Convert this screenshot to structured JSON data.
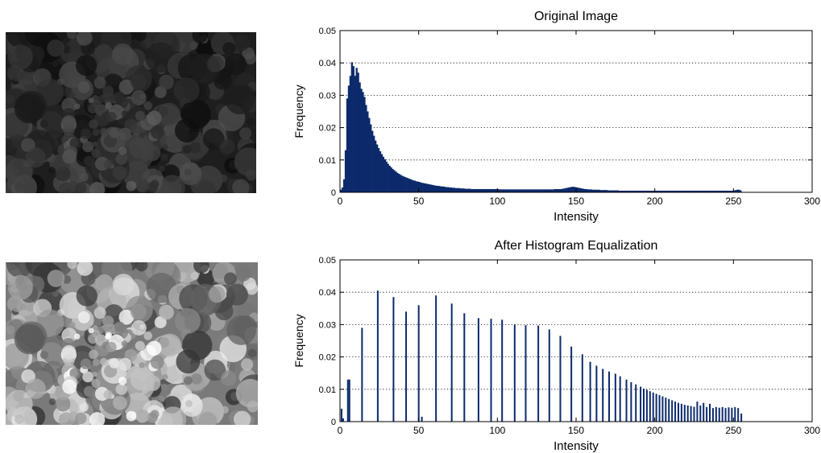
{
  "colors": {
    "bar": "#0c2a6b",
    "grid": "#000000",
    "axis": "#000000"
  },
  "photos": [
    {
      "name": "original-crowd-photo",
      "tone": "dark"
    },
    {
      "name": "equalized-crowd-photo",
      "tone": "bright"
    }
  ],
  "chart_data": [
    {
      "type": "bar",
      "title": "Original Image",
      "xlabel": "Intensity",
      "ylabel": "Frequency",
      "xlim": [
        0,
        300
      ],
      "ylim": [
        0,
        0.05
      ],
      "xticks": [
        0,
        50,
        100,
        150,
        200,
        250,
        300
      ],
      "yticks": [
        0,
        0.01,
        0.02,
        0.03,
        0.04,
        0.05
      ],
      "xtick_labels": [
        "0",
        "50",
        "100",
        "150",
        "200",
        "250",
        "300"
      ],
      "ytick_labels": [
        "0",
        "0.01",
        "0.02",
        "0.03",
        "0.04",
        "0.05"
      ],
      "grid": "horizontal-dotted",
      "series": [
        {
          "x_start": 0,
          "values": [
            0.0008,
            0.0015,
            0.004,
            0.013,
            0.029,
            0.033,
            0.036,
            0.0402,
            0.039,
            0.036,
            0.0385,
            0.037,
            0.034,
            0.032,
            0.031,
            0.0295,
            0.027,
            0.025,
            0.023,
            0.021,
            0.019,
            0.0175,
            0.016,
            0.0148,
            0.0137,
            0.0127,
            0.0118,
            0.011,
            0.0102,
            0.0095,
            0.0088,
            0.0082,
            0.0077,
            0.0072,
            0.0068,
            0.0064,
            0.006,
            0.0057,
            0.0054,
            0.0051,
            0.0049,
            0.0047,
            0.0045,
            0.0043,
            0.0041,
            0.0039,
            0.0037,
            0.0036,
            0.0034,
            0.0033,
            0.0032,
            0.003,
            0.0029,
            0.0028,
            0.0027,
            0.0026,
            0.0025,
            0.0024,
            0.0023,
            0.0022,
            0.0021,
            0.002,
            0.002,
            0.0019,
            0.0018,
            0.0018,
            0.0017,
            0.0016,
            0.0016,
            0.0015,
            0.0015,
            0.0014,
            0.0014,
            0.0013,
            0.0013,
            0.0013,
            0.0012,
            0.0012,
            0.0012,
            0.0011,
            0.0011,
            0.0011,
            0.0011,
            0.001,
            0.001,
            0.001,
            0.001,
            0.001,
            0.001,
            0.001,
            0.001,
            0.001,
            0.001,
            0.001,
            0.001,
            0.001,
            0.001,
            0.001,
            0.001,
            0.001,
            0.001,
            0.0009,
            0.0009,
            0.0009,
            0.0009,
            0.0009,
            0.0009,
            0.0009,
            0.0009,
            0.0009,
            0.0009,
            0.0009,
            0.0009,
            0.0009,
            0.0009,
            0.0009,
            0.0009,
            0.0009,
            0.0009,
            0.0009,
            0.0009,
            0.0009,
            0.0009,
            0.0009,
            0.0009,
            0.0009,
            0.0009,
            0.0009,
            0.0009,
            0.0009,
            0.0009,
            0.0009,
            0.0009,
            0.0009,
            0.0009,
            0.0009,
            0.001,
            0.001,
            0.001,
            0.001,
            0.001,
            0.0011,
            0.0012,
            0.0013,
            0.0014,
            0.0015,
            0.0016,
            0.0017,
            0.0017,
            0.0016,
            0.0015,
            0.0014,
            0.0013,
            0.0012,
            0.0011,
            0.001,
            0.001,
            0.0009,
            0.0009,
            0.0009,
            0.0008,
            0.0008,
            0.0008,
            0.0008,
            0.0008,
            0.0007,
            0.0007,
            0.0007,
            0.0007,
            0.0007,
            0.0006,
            0.0006,
            0.0006,
            0.0006,
            0.0006,
            0.0006,
            0.0006,
            0.0005,
            0.0005,
            0.0005,
            0.0005,
            0.0005,
            0.0005,
            0.0005,
            0.0005,
            0.0005,
            0.0005,
            0.0005,
            0.0005,
            0.0005,
            0.0005,
            0.0005,
            0.0005,
            0.0005,
            0.0005,
            0.0005,
            0.0005,
            0.0005,
            0.0005,
            0.0005,
            0.0005,
            0.0005,
            0.0005,
            0.0005,
            0.0005,
            0.0005,
            0.0005,
            0.0005,
            0.0005,
            0.0005,
            0.0005,
            0.0005,
            0.0005,
            0.0005,
            0.0005,
            0.0005,
            0.0005,
            0.0005,
            0.0005,
            0.0005,
            0.0005,
            0.0005,
            0.0005,
            0.0005,
            0.0005,
            0.0005,
            0.0005,
            0.0005,
            0.0005,
            0.0005,
            0.0005,
            0.0005,
            0.0005,
            0.0005,
            0.0005,
            0.0005,
            0.0005,
            0.0005,
            0.0005,
            0.0005,
            0.0005,
            0.0005,
            0.0005,
            0.0005,
            0.0005,
            0.0005,
            0.0005,
            0.0005,
            0.0005,
            0.0005,
            0.0006,
            0.0007,
            0.0008,
            0.0008,
            0.0006
          ]
        }
      ]
    },
    {
      "type": "bar",
      "title": "After Histogram Equalization",
      "xlabel": "Intensity",
      "ylabel": "Frequency",
      "xlim": [
        0,
        300
      ],
      "ylim": [
        0,
        0.05
      ],
      "xticks": [
        0,
        50,
        100,
        150,
        200,
        250,
        300
      ],
      "yticks": [
        0,
        0.01,
        0.02,
        0.03,
        0.04,
        0.05
      ],
      "xtick_labels": [
        "0",
        "50",
        "100",
        "150",
        "200",
        "250",
        "300"
      ],
      "ytick_labels": [
        "0",
        "0.01",
        "0.02",
        "0.03",
        "0.04",
        "0.05"
      ],
      "grid": "horizontal-dotted",
      "series": [
        {
          "x": [
            1,
            2,
            5,
            6,
            14,
            24,
            34,
            42,
            50,
            52,
            61,
            71,
            79,
            88,
            96,
            103,
            111,
            118,
            126,
            133,
            140,
            147,
            154,
            159,
            163,
            167,
            171,
            175,
            178,
            182,
            185,
            188,
            191,
            193,
            195,
            197,
            199,
            201,
            203,
            205,
            207,
            209,
            211,
            213,
            215,
            217,
            219,
            221,
            223,
            225,
            227,
            229,
            231,
            233,
            235,
            237,
            239,
            241,
            243,
            245,
            247,
            249,
            251,
            253,
            255
          ],
          "values": [
            0.004,
            0.001,
            0.013,
            0.013,
            0.029,
            0.0405,
            0.0385,
            0.034,
            0.036,
            0.0015,
            0.039,
            0.0365,
            0.0335,
            0.032,
            0.0318,
            0.0315,
            0.03,
            0.0298,
            0.0297,
            0.0285,
            0.0265,
            0.0232,
            0.0208,
            0.0185,
            0.0173,
            0.0163,
            0.0155,
            0.0148,
            0.014,
            0.013,
            0.0122,
            0.0115,
            0.0108,
            0.0102,
            0.0098,
            0.0094,
            0.009,
            0.0086,
            0.0082,
            0.0078,
            0.0074,
            0.007,
            0.0066,
            0.0062,
            0.0058,
            0.0055,
            0.0052,
            0.005,
            0.0048,
            0.0046,
            0.0062,
            0.005,
            0.0058,
            0.0045,
            0.0055,
            0.0042,
            0.0045,
            0.0043,
            0.0045,
            0.0042,
            0.0044,
            0.0043,
            0.0045,
            0.0042,
            0.0025
          ]
        }
      ]
    }
  ]
}
